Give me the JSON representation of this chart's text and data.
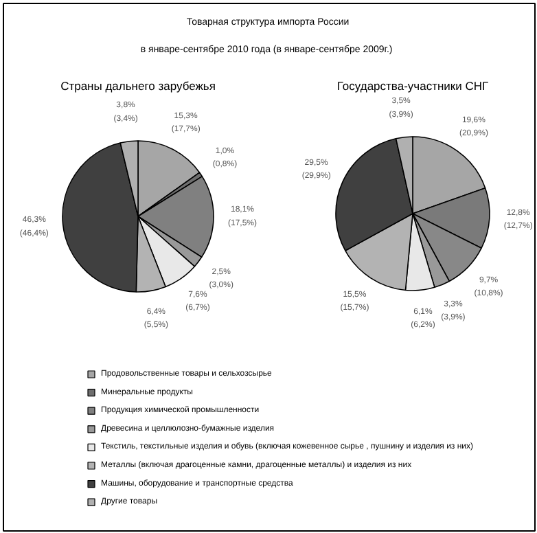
{
  "chart_data": [
    {
      "type": "pie",
      "title": "Страны дальнего зарубежья",
      "annotations": [
        "Товарная структура  импорта России",
        "в январе-сентябре 2010  года  (в январе-сентябре 2009г.)"
      ],
      "categories": [
        "Продовольственные товары и сельхозсырье",
        "Минеральные продукты",
        "Продукция химической промышленности",
        "Древесина и целлюлозно-бумажные  изделия",
        "Текстиль, текстильные  изделия и обувь (включая кожевенное  сырье , пушнину  и изделия из них)",
        "Металлы (включая драгоценные камни, драгоценные металлы) и изделия из них",
        "Машины, оборудование  и транспортные средства",
        "Другие товары"
      ],
      "values": [
        15.3,
        1.0,
        18.1,
        2.5,
        7.6,
        6.4,
        46.3,
        3.8
      ],
      "value_labels": [
        "15,3%\n(17,7%)",
        "1,0%\n(0,8%)",
        "18,1%\n(17,5%)",
        "2,5%\n(3,0%)",
        "7,6%\n(6,7%)",
        "6,4%\n(5,5%)",
        "46,3%\n(46,4%)",
        "3,8%\n(3,4%)"
      ],
      "colors": [
        "#a6a6a6",
        "#6e6e6e",
        "#808080",
        "#999999",
        "#e8e8e8",
        "#b3b3b3",
        "#404040",
        "#b0b0b0"
      ],
      "legend": "bottom"
    },
    {
      "type": "pie",
      "title": "Государства-участники СНГ",
      "values": [
        19.6,
        12.8,
        9.7,
        3.3,
        6.1,
        15.5,
        29.5,
        3.5
      ],
      "value_labels": [
        "19,6%\n(20,9%)",
        "12,8%\n(12,7%)",
        "9,7%\n(10,8%)",
        "3,3%\n(3,9%)",
        "6,1%\n(6,2%)",
        "15,5%\n(15,7%)",
        "29,5%\n(29,9%)",
        "3,5%\n(3,9%)"
      ],
      "colors": [
        "#a6a6a6",
        "#7a7a7a",
        "#888888",
        "#999999",
        "#e8e8e8",
        "#b3b3b3",
        "#404040",
        "#b0b0b0"
      ]
    }
  ]
}
